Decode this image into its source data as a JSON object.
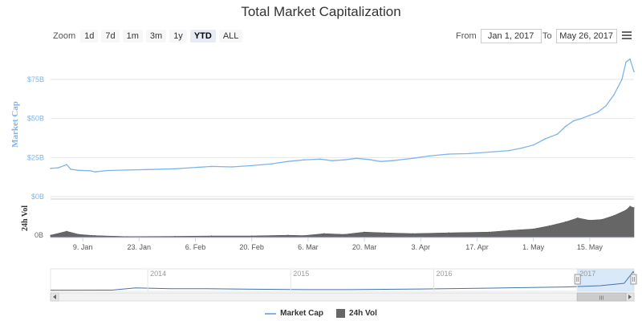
{
  "title": "Total Market Capitalization",
  "zoom": {
    "label": "Zoom",
    "buttons": [
      "1d",
      "7d",
      "1m",
      "3m",
      "1y",
      "YTD",
      "ALL"
    ],
    "active": "YTD"
  },
  "range": {
    "from_label": "From",
    "from_value": "Jan 1, 2017",
    "to_label": "To",
    "to_value": "May 26, 2017"
  },
  "colors": {
    "market_cap": "#7cb5ec",
    "volume": "#666666",
    "navigator_mask": "#cfe3f7"
  },
  "chart_data": {
    "type": "line",
    "title": "Total Market Capitalization",
    "ylabel": "Market Cap",
    "ylabel_volume": "24h Vol",
    "y_ticks": [
      "$0B",
      "$25B",
      "$50B",
      "$75B"
    ],
    "y_tick_values": [
      0,
      25,
      50,
      75
    ],
    "ylim": [
      0,
      95
    ],
    "volume_ticks": [
      "0B"
    ],
    "x_ticks": [
      "9. Jan",
      "23. Jan",
      "6. Feb",
      "20. Feb",
      "6. Mar",
      "20. Mar",
      "3. Apr",
      "17. Apr",
      "1. May",
      "15. May"
    ],
    "x_tick_dates": [
      "2017-01-09",
      "2017-01-23",
      "2017-02-06",
      "2017-02-20",
      "2017-03-06",
      "2017-03-20",
      "2017-04-03",
      "2017-04-17",
      "2017-05-01",
      "2017-05-15"
    ],
    "xlim": [
      "2017-01-01",
      "2017-05-26"
    ],
    "series": [
      {
        "name": "Market Cap",
        "points": [
          [
            "2017-01-01",
            18.0
          ],
          [
            "2017-01-03",
            18.5
          ],
          [
            "2017-01-05",
            20.5
          ],
          [
            "2017-01-06",
            17.5
          ],
          [
            "2017-01-08",
            16.8
          ],
          [
            "2017-01-11",
            16.5
          ],
          [
            "2017-01-12",
            15.8
          ],
          [
            "2017-01-15",
            16.7
          ],
          [
            "2017-01-20",
            17.0
          ],
          [
            "2017-01-25",
            17.3
          ],
          [
            "2017-02-01",
            17.8
          ],
          [
            "2017-02-05",
            18.5
          ],
          [
            "2017-02-10",
            19.3
          ],
          [
            "2017-02-15",
            19.0
          ],
          [
            "2017-02-20",
            19.8
          ],
          [
            "2017-02-25",
            21.0
          ],
          [
            "2017-03-01",
            22.5
          ],
          [
            "2017-03-05",
            23.5
          ],
          [
            "2017-03-09",
            24.0
          ],
          [
            "2017-03-12",
            23.0
          ],
          [
            "2017-03-15",
            23.5
          ],
          [
            "2017-03-18",
            24.5
          ],
          [
            "2017-03-21",
            23.8
          ],
          [
            "2017-03-24",
            22.5
          ],
          [
            "2017-03-27",
            23.0
          ],
          [
            "2017-04-01",
            24.5
          ],
          [
            "2017-04-05",
            26.0
          ],
          [
            "2017-04-10",
            27.2
          ],
          [
            "2017-04-15",
            27.5
          ],
          [
            "2017-04-20",
            28.5
          ],
          [
            "2017-04-25",
            29.5
          ],
          [
            "2017-04-28",
            31.0
          ],
          [
            "2017-05-01",
            33.0
          ],
          [
            "2017-05-04",
            37.0
          ],
          [
            "2017-05-07",
            40.0
          ],
          [
            "2017-05-09",
            45.0
          ],
          [
            "2017-05-11",
            48.5
          ],
          [
            "2017-05-13",
            50.0
          ],
          [
            "2017-05-15",
            52.0
          ],
          [
            "2017-05-17",
            54.0
          ],
          [
            "2017-05-19",
            58.0
          ],
          [
            "2017-05-21",
            65.0
          ],
          [
            "2017-05-23",
            75.0
          ],
          [
            "2017-05-24",
            86.0
          ],
          [
            "2017-05-25",
            88.0
          ],
          [
            "2017-05-26",
            80.0
          ]
        ]
      },
      {
        "name": "24h Vol",
        "points": [
          [
            "2017-01-01",
            0.3
          ],
          [
            "2017-01-05",
            0.8
          ],
          [
            "2017-01-08",
            0.4
          ],
          [
            "2017-01-12",
            0.25
          ],
          [
            "2017-01-20",
            0.12
          ],
          [
            "2017-02-01",
            0.15
          ],
          [
            "2017-02-10",
            0.2
          ],
          [
            "2017-02-20",
            0.2
          ],
          [
            "2017-03-01",
            0.3
          ],
          [
            "2017-03-05",
            0.25
          ],
          [
            "2017-03-10",
            0.5
          ],
          [
            "2017-03-15",
            0.4
          ],
          [
            "2017-03-20",
            0.7
          ],
          [
            "2017-03-25",
            0.6
          ],
          [
            "2017-04-01",
            0.5
          ],
          [
            "2017-04-10",
            0.6
          ],
          [
            "2017-04-20",
            0.7
          ],
          [
            "2017-04-25",
            0.9
          ],
          [
            "2017-05-01",
            1.1
          ],
          [
            "2017-05-05",
            1.5
          ],
          [
            "2017-05-09",
            2.0
          ],
          [
            "2017-05-12",
            2.5
          ],
          [
            "2017-05-15",
            2.2
          ],
          [
            "2017-05-18",
            2.3
          ],
          [
            "2017-05-21",
            2.8
          ],
          [
            "2017-05-24",
            3.5
          ],
          [
            "2017-05-25",
            4.0
          ],
          [
            "2017-05-26",
            3.8
          ]
        ]
      }
    ],
    "navigator": {
      "x_labels": [
        "2014",
        "2015",
        "2016",
        "2017"
      ],
      "x_label_dates": [
        "2014-01-01",
        "2015-01-01",
        "2016-01-01",
        "2017-01-01"
      ],
      "xlim": [
        "2013-04-28",
        "2017-05-26"
      ],
      "selected": [
        "2017-01-01",
        "2017-05-26"
      ],
      "points": [
        [
          "2013-04-28",
          1.5
        ],
        [
          "2013-10-01",
          2.0
        ],
        [
          "2013-12-01",
          12.0
        ],
        [
          "2014-01-15",
          10.0
        ],
        [
          "2014-03-01",
          8.0
        ],
        [
          "2014-06-01",
          8.5
        ],
        [
          "2014-09-01",
          6.5
        ],
        [
          "2015-01-01",
          4.5
        ],
        [
          "2015-06-01",
          4.0
        ],
        [
          "2015-12-01",
          7.0
        ],
        [
          "2016-06-01",
          11.0
        ],
        [
          "2016-12-01",
          16.0
        ],
        [
          "2017-03-01",
          22.0
        ],
        [
          "2017-05-01",
          33.0
        ],
        [
          "2017-05-24",
          86.0
        ],
        [
          "2017-05-26",
          80.0
        ]
      ],
      "scrollbar_grip": "III"
    }
  },
  "legend": [
    {
      "label": "Market Cap",
      "kind": "line"
    },
    {
      "label": "24h Vol",
      "kind": "box"
    }
  ],
  "icons": {
    "menu": "hamburger-menu-icon",
    "scroll_left": "arrow-left-icon",
    "scroll_right": "arrow-right-icon"
  }
}
